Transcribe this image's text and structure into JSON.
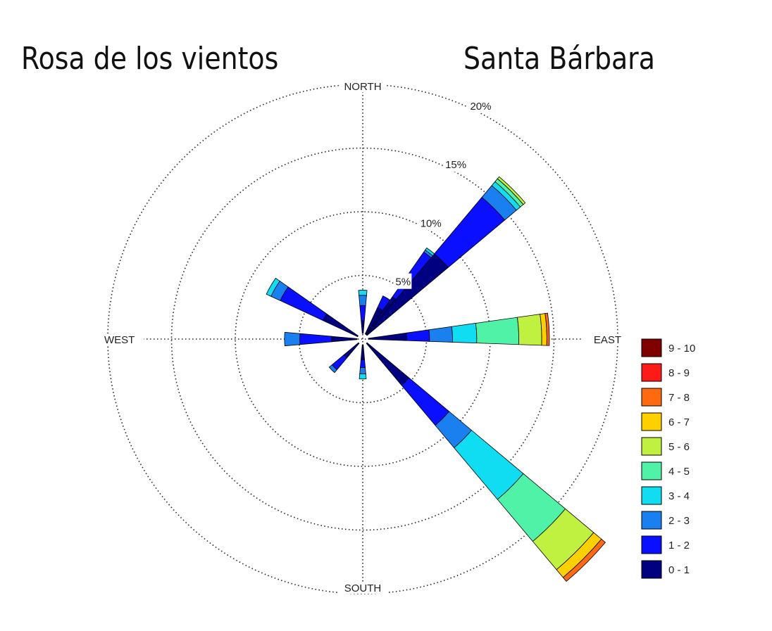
{
  "page": {
    "title": "Rosa de los vientos",
    "location": "Santa Bárbara"
  },
  "chart_data": {
    "type": "wind-rose",
    "directions": [
      "NORTH",
      "EAST",
      "SOUTH",
      "WEST"
    ],
    "rings": [
      {
        "value": 5,
        "label": "5%"
      },
      {
        "value": 10,
        "label": "10%"
      },
      {
        "value": 15,
        "label": "15%"
      },
      {
        "value": 20,
        "label": "20%"
      }
    ],
    "rmax": 20,
    "grid": true,
    "legend_position": "right",
    "legend": [
      {
        "label": "9 - 10",
        "color": "#800000"
      },
      {
        "label": "8 - 9",
        "color": "#ff1a1a"
      },
      {
        "label": "7 - 8",
        "color": "#ff6a10"
      },
      {
        "label": "6 - 7",
        "color": "#ffd000"
      },
      {
        "label": "5 - 6",
        "color": "#c0f040"
      },
      {
        "label": "4 - 5",
        "color": "#50f2a8"
      },
      {
        "label": "3 - 4",
        "color": "#10dcf2"
      },
      {
        "label": "2 - 3",
        "color": "#1a80f0"
      },
      {
        "label": "1 - 2",
        "color": "#0a10ff"
      },
      {
        "label": "0 - 1",
        "color": "#000080"
      }
    ],
    "sectors": [
      {
        "direction": 0,
        "speeds": [
          {
            "range": "0 - 1",
            "value": 1.0
          },
          {
            "range": "1 - 2",
            "value": 1.2
          },
          {
            "range": "2 - 3",
            "value": 0.8
          },
          {
            "range": "3 - 4",
            "value": 0.4
          }
        ]
      },
      {
        "direction": 30,
        "speeds": [
          {
            "range": "0 - 1",
            "value": 2.3
          },
          {
            "range": "1 - 2",
            "value": 1.0
          }
        ]
      },
      {
        "direction": 40,
        "speeds": [
          {
            "range": "0 - 1",
            "value": 3.6
          },
          {
            "range": "1 - 2",
            "value": 4.3
          },
          {
            "range": "2 - 3",
            "value": 0.2
          },
          {
            "range": "3 - 4",
            "value": 0.2
          }
        ]
      },
      {
        "direction": 45,
        "speeds": [
          {
            "range": "0 - 1",
            "value": 8.3
          },
          {
            "range": "1 - 2",
            "value": 5.8
          },
          {
            "range": "2 - 3",
            "value": 1.2
          },
          {
            "range": "3 - 4",
            "value": 0.4
          },
          {
            "range": "4 - 5",
            "value": 0.3
          },
          {
            "range": "5 - 6",
            "value": 0.2
          }
        ]
      },
      {
        "direction": 87,
        "speeds": [
          {
            "range": "0 - 1",
            "value": 3.0
          },
          {
            "range": "1 - 2",
            "value": 1.8
          },
          {
            "range": "2 - 3",
            "value": 1.8
          },
          {
            "range": "3 - 4",
            "value": 1.9
          },
          {
            "range": "4 - 5",
            "value": 3.3
          },
          {
            "range": "5 - 6",
            "value": 1.8
          },
          {
            "range": "6 - 7",
            "value": 0.4
          },
          {
            "range": "7 - 8",
            "value": 0.2
          }
        ]
      },
      {
        "direction": 135,
        "speeds": [
          {
            "range": "0 - 1",
            "value": 4.3
          },
          {
            "range": "1 - 2",
            "value": 4.1
          },
          {
            "range": "2 - 3",
            "value": 2.3
          },
          {
            "range": "3 - 4",
            "value": 5.3
          },
          {
            "range": "4 - 5",
            "value": 4.3
          },
          {
            "range": "5 - 6",
            "value": 2.9
          },
          {
            "range": "6 - 7",
            "value": 0.8
          },
          {
            "range": "7 - 8",
            "value": 0.4
          }
        ]
      },
      {
        "direction": 180,
        "speeds": [
          {
            "range": "0 - 1",
            "value": 1.2
          },
          {
            "range": "1 - 2",
            "value": 0.6
          },
          {
            "range": "2 - 3",
            "value": 0.5
          },
          {
            "range": "3 - 4",
            "value": 0.4
          }
        ]
      },
      {
        "direction": 225,
        "speeds": [
          {
            "range": "0 - 1",
            "value": 1.5
          },
          {
            "range": "1 - 2",
            "value": 1.2
          },
          {
            "range": "2 - 3",
            "value": 0.3
          }
        ]
      },
      {
        "direction": 270,
        "speeds": [
          {
            "range": "0 - 1",
            "value": 2.0
          },
          {
            "range": "1 - 2",
            "value": 2.5
          },
          {
            "range": "2 - 3",
            "value": 1.2
          }
        ]
      },
      {
        "direction": 300,
        "speeds": [
          {
            "range": "0 - 1",
            "value": 3.0
          },
          {
            "range": "1 - 2",
            "value": 3.7
          },
          {
            "range": "2 - 3",
            "value": 0.8
          },
          {
            "range": "3 - 4",
            "value": 0.4
          }
        ]
      }
    ]
  }
}
